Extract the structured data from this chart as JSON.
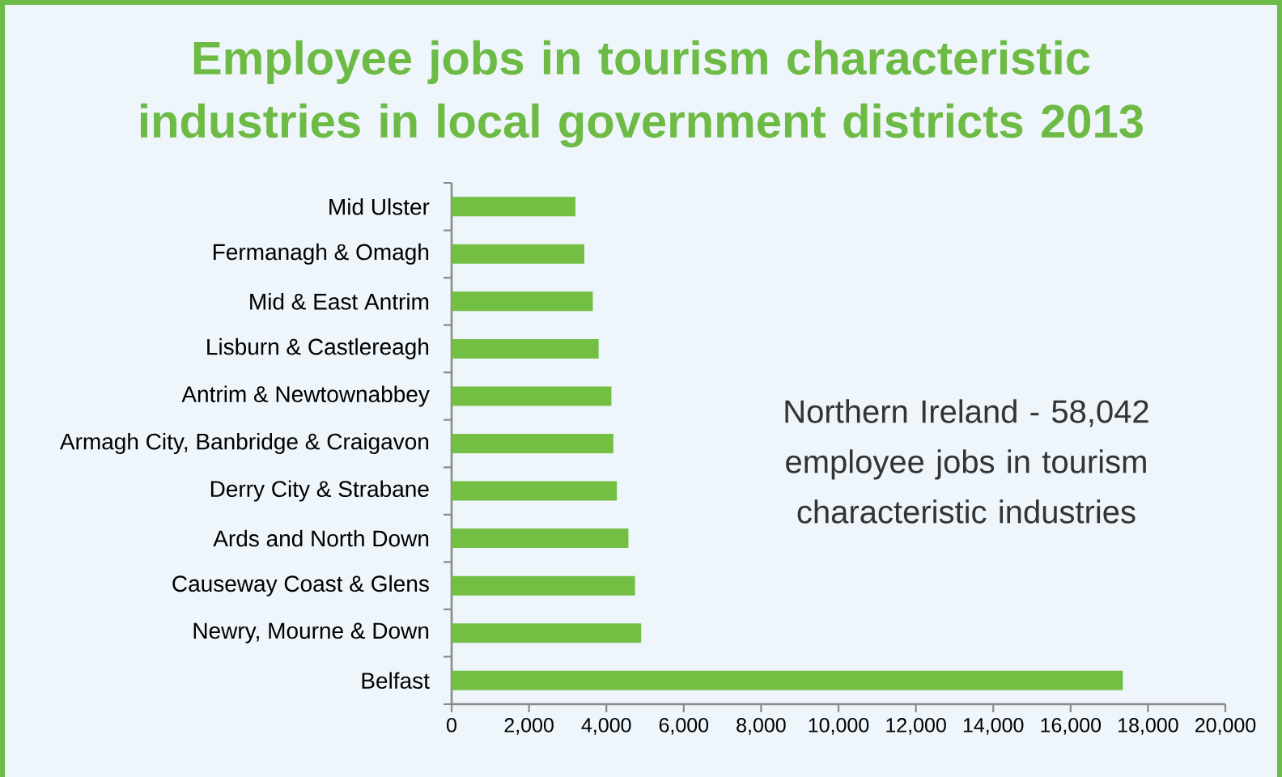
{
  "chart_data": {
    "type": "bar",
    "orientation": "horizontal",
    "title": "Employee jobs in tourism characteristic industries in local government districts 2013",
    "categories": [
      "Mid Ulster",
      "Fermanagh & Omagh",
      "Mid & East Antrim",
      "Lisburn & Castlereagh",
      "Antrim & Newtownabbey",
      "Armagh City, Banbridge & Craigavon",
      "Derry City & Strabane",
      "Ards and North Down",
      "Causeway Coast & Glens",
      "Newry, Mourne & Down",
      "Belfast"
    ],
    "values": [
      3200,
      3430,
      3650,
      3800,
      4130,
      4180,
      4270,
      4570,
      4740,
      4900,
      17350
    ],
    "color": "#72bf44",
    "xlim": [
      0,
      20000
    ],
    "xticks": [
      0,
      {
        "value": 2000,
        "label": "2,000"
      },
      {
        "value": 4000,
        "label": "4,000"
      },
      {
        "value": 6000,
        "label": "6,000"
      },
      {
        "value": 8000,
        "label": "8,000"
      },
      {
        "value": 10000,
        "label": "10,000"
      },
      {
        "value": 12000,
        "label": "12,000"
      },
      {
        "value": 14000,
        "label": "14,000"
      },
      {
        "value": 16000,
        "label": "16,000"
      },
      {
        "value": 18000,
        "label": "18,000"
      },
      {
        "value": 20000,
        "label": "20,000"
      }
    ],
    "annotations": [
      "Northern Ireland - 58,042 employee jobs in tourism characteristic industries"
    ]
  }
}
